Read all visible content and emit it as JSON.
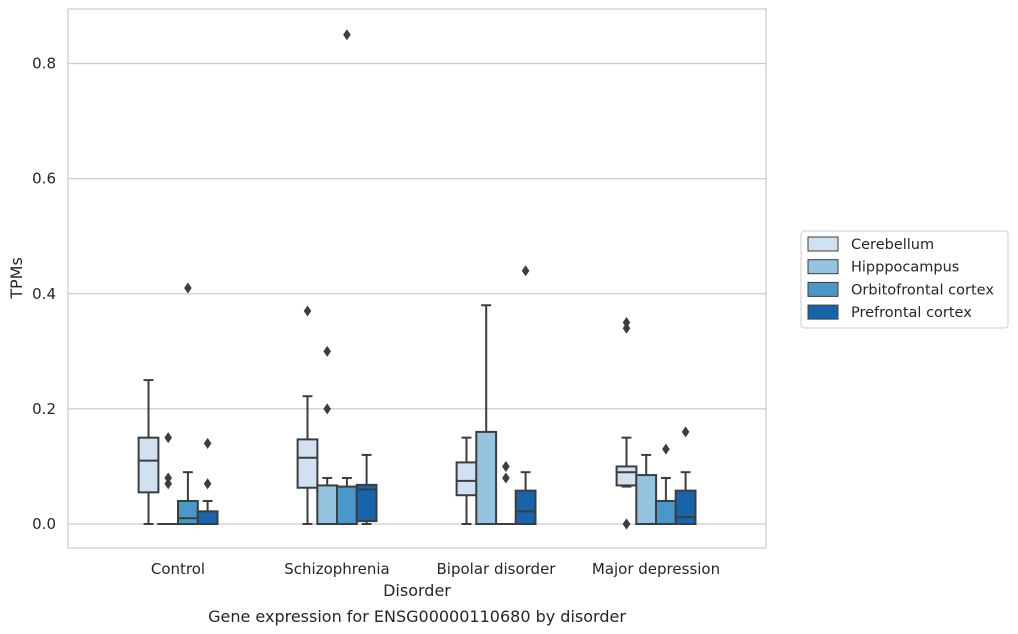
{
  "chart_data": {
    "type": "box",
    "caption": "Gene expression for ENSG00000110680 by disorder",
    "xlabel": "Disorder",
    "ylabel": "TPMs",
    "ylim": [
      -0.04,
      0.895
    ],
    "yticks": [
      0.0,
      0.2,
      0.4,
      0.6,
      0.8
    ],
    "ytick_labels": [
      "0.0",
      "0.2",
      "0.4",
      "0.6",
      "0.8"
    ],
    "grid": "horizontal",
    "legend_position": "right",
    "categories": [
      "Control",
      "Schizophrenia",
      "Bipolar disorder",
      "Major depression"
    ],
    "series": [
      {
        "name": "Cerebellum",
        "color": "#d0e1f2",
        "boxes": [
          {
            "q1": 0.055,
            "median": 0.11,
            "q3": 0.15,
            "whisker_low": 0.0,
            "whisker_high": 0.25,
            "outliers": []
          },
          {
            "q1": 0.063,
            "median": 0.115,
            "q3": 0.147,
            "whisker_low": 0.0,
            "whisker_high": 0.222,
            "outliers": [
              0.37
            ]
          },
          {
            "q1": 0.05,
            "median": 0.075,
            "q3": 0.107,
            "whisker_low": 0.0,
            "whisker_high": 0.15,
            "outliers": []
          },
          {
            "q1": 0.067,
            "median": 0.09,
            "q3": 0.1,
            "whisker_low": 0.065,
            "whisker_high": 0.15,
            "outliers": [
              0.35,
              0.34,
              0.0,
              0.0
            ]
          }
        ]
      },
      {
        "name": "Hipppocampus",
        "color": "#94c4df",
        "boxes": [
          {
            "q1": 0.0,
            "median": 0.0,
            "q3": 0.0,
            "whisker_low": 0.0,
            "whisker_high": 0.0,
            "outliers": [
              0.15,
              0.08,
              0.07
            ]
          },
          {
            "q1": 0.0,
            "median": 0.0,
            "q3": 0.067,
            "whisker_low": 0.0,
            "whisker_high": 0.08,
            "outliers": [
              0.3,
              0.2
            ]
          },
          {
            "q1": 0.0,
            "median": 0.0,
            "q3": 0.16,
            "whisker_low": 0.0,
            "whisker_high": 0.38,
            "outliers": []
          },
          {
            "q1": 0.0,
            "median": 0.0,
            "q3": 0.085,
            "whisker_low": 0.0,
            "whisker_high": 0.12,
            "outliers": []
          }
        ]
      },
      {
        "name": "Orbitofrontal cortex",
        "color": "#4a98c9",
        "boxes": [
          {
            "q1": 0.0,
            "median": 0.01,
            "q3": 0.04,
            "whisker_low": 0.0,
            "whisker_high": 0.09,
            "outliers": [
              0.41
            ]
          },
          {
            "q1": 0.0,
            "median": 0.0,
            "q3": 0.065,
            "whisker_low": 0.0,
            "whisker_high": 0.08,
            "outliers": [
              0.85
            ]
          },
          {
            "q1": 0.0,
            "median": 0.0,
            "q3": 0.0,
            "whisker_low": 0.0,
            "whisker_high": 0.0,
            "outliers": [
              0.1,
              0.08
            ]
          },
          {
            "q1": 0.0,
            "median": 0.0,
            "q3": 0.04,
            "whisker_low": 0.0,
            "whisker_high": 0.08,
            "outliers": [
              0.13
            ]
          }
        ]
      },
      {
        "name": "Prefrontal cortex",
        "color": "#1764ab",
        "boxes": [
          {
            "q1": 0.0,
            "median": 0.0,
            "q3": 0.022,
            "whisker_low": 0.0,
            "whisker_high": 0.04,
            "outliers": [
              0.14,
              0.07
            ]
          },
          {
            "q1": 0.005,
            "median": 0.06,
            "q3": 0.068,
            "whisker_low": 0.0,
            "whisker_high": 0.12,
            "outliers": []
          },
          {
            "q1": 0.0,
            "median": 0.022,
            "q3": 0.058,
            "whisker_low": 0.0,
            "whisker_high": 0.09,
            "outliers": [
              0.44
            ]
          },
          {
            "q1": 0.0,
            "median": 0.012,
            "q3": 0.058,
            "whisker_low": 0.0,
            "whisker_high": 0.09,
            "outliers": [
              0.16
            ]
          }
        ]
      }
    ]
  }
}
